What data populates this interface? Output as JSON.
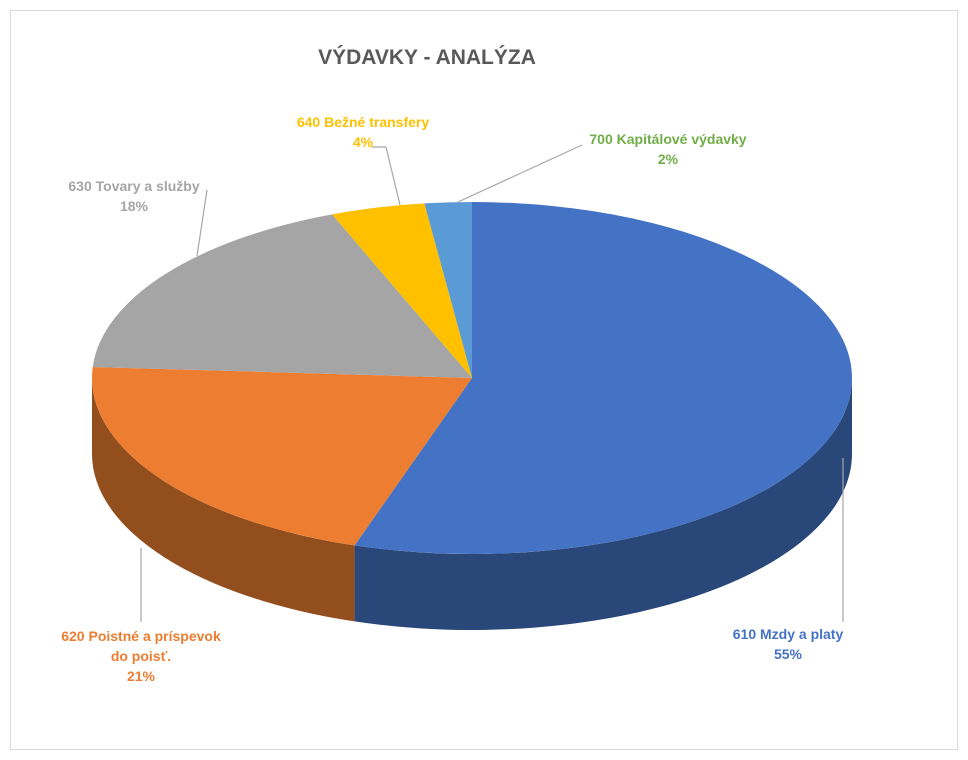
{
  "chart_data": {
    "type": "pie",
    "title": "VÝDAVKY - ANALÝZA",
    "categories": [
      "610 Mzdy a platy",
      "620 Poistné a príspevok do poisť.",
      "630 Tovary a služby",
      "640 Bežné transfery",
      "700 Kapitálové výdavky"
    ],
    "values": [
      55,
      21,
      18,
      4,
      2
    ],
    "value_labels": [
      "55%",
      "21%",
      "18%",
      "4%",
      "2%"
    ],
    "colors": [
      "#4472c4",
      "#ed7d31",
      "#a5a5a5",
      "#ffc000",
      "#5b9bd5"
    ],
    "label_colors": [
      "#4472c4",
      "#ed7d31",
      "#a5a5a5",
      "#ffc000",
      "#70ad47"
    ]
  }
}
